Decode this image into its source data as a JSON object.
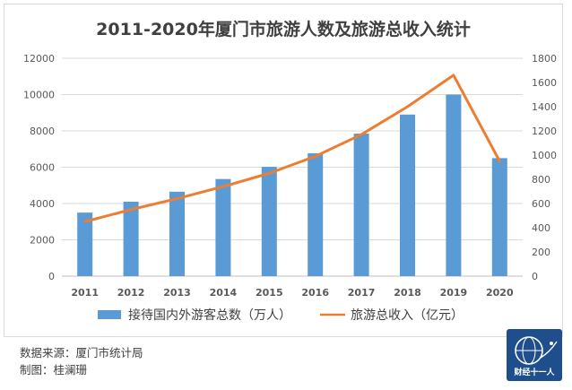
{
  "chart_data": {
    "type": "bar",
    "title": "2011-2020年厦门市旅游人数及旅游总收入统计",
    "categories": [
      "2011",
      "2012",
      "2013",
      "2014",
      "2015",
      "2016",
      "2017",
      "2018",
      "2019",
      "2020"
    ],
    "series": [
      {
        "name": "接待国内外游客总数（万人）",
        "type": "bar",
        "axis": "left",
        "color": "#5b9bd5",
        "values": [
          3500,
          4100,
          4650,
          5350,
          6020,
          6770,
          7850,
          8900,
          10000,
          6500
        ]
      },
      {
        "name": "旅游总收入（亿元）",
        "type": "line",
        "axis": "right",
        "color": "#ed7d31",
        "values": [
          450,
          550,
          640,
          740,
          850,
          990,
          1170,
          1400,
          1660,
          950
        ]
      }
    ],
    "y_left": {
      "min": 0,
      "max": 12000,
      "step": 2000,
      "ticks": [
        "0",
        "2000",
        "4000",
        "6000",
        "8000",
        "10000",
        "12000"
      ]
    },
    "y_right": {
      "min": 0,
      "max": 1800,
      "step": 200,
      "ticks": [
        "0",
        "200",
        "400",
        "600",
        "800",
        "1000",
        "1200",
        "1400",
        "1600",
        "1800"
      ]
    },
    "grid": true,
    "legend_position": "bottom"
  },
  "footer": {
    "source": "数据来源：厦门市统计局",
    "author": "制图：桂澜珊"
  },
  "logo": {
    "text": "财经十一人"
  }
}
